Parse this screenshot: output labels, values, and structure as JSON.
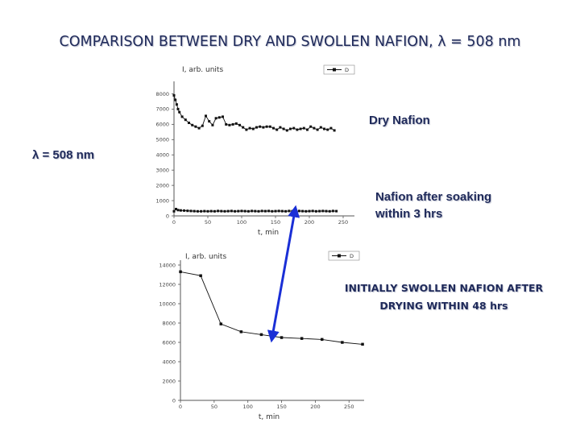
{
  "slide": {
    "title": "COMPARISON BETWEEN DRY AND SWOLLEN NAFION, λ = 508 nm",
    "wavelength_label": "λ = 508 nm",
    "dry_label": "Dry Nafion",
    "soaked_label_line1": "Nafion after soaking",
    "soaked_label_line2": "within 3 hrs",
    "drying_label_line1": "INITIALLY SWOLLEN NAFION AFTER",
    "drying_label_line2": "DRYING WITHIN 48 hrs"
  },
  "colors": {
    "title": "#1f2a5a",
    "arrow": "#1a2fd6",
    "series": "#111111"
  },
  "chart_data": [
    {
      "type": "line",
      "ylabel": "I, arb. units",
      "xlabel": "t, min",
      "legend": "D",
      "legend_position": "top-right",
      "xlim": [
        0,
        250
      ],
      "ylim": [
        0,
        8500
      ],
      "xticks": [
        0,
        50,
        100,
        150,
        200,
        250
      ],
      "yticks": [
        0,
        1000,
        2000,
        3000,
        4000,
        5000,
        6000,
        7000,
        8000
      ],
      "grid": false,
      "series": [
        {
          "x": [
            0,
            2,
            4,
            6,
            8,
            12,
            17,
            22,
            27,
            32,
            37,
            42,
            47,
            52,
            57,
            62,
            67,
            72,
            77,
            82,
            87,
            92,
            97,
            102,
            107,
            112,
            117,
            122,
            127,
            132,
            137,
            142,
            147,
            152,
            157,
            162,
            167,
            172,
            177,
            182,
            187,
            192,
            197,
            202,
            207,
            212,
            217,
            222,
            227,
            232,
            237
          ],
          "y": [
            7900,
            7600,
            7300,
            7000,
            6800,
            6500,
            6300,
            6100,
            5950,
            5850,
            5750,
            5900,
            6550,
            6200,
            5950,
            6400,
            6450,
            6500,
            6000,
            5950,
            6000,
            6050,
            5950,
            5800,
            5650,
            5750,
            5700,
            5800,
            5850,
            5800,
            5850,
            5850,
            5750,
            5650,
            5800,
            5700,
            5600,
            5700,
            5750,
            5650,
            5700,
            5750,
            5650,
            5850,
            5750,
            5650,
            5800,
            5700,
            5650,
            5750,
            5600
          ]
        },
        {
          "x": [
            0,
            3,
            6,
            10,
            15,
            20,
            25,
            30,
            35,
            40,
            45,
            50,
            55,
            60,
            65,
            70,
            75,
            80,
            85,
            90,
            95,
            100,
            105,
            110,
            115,
            120,
            125,
            130,
            135,
            140,
            145,
            150,
            155,
            160,
            165,
            170,
            175,
            180,
            185,
            190,
            195,
            200,
            205,
            210,
            215,
            220,
            225,
            230,
            235,
            240
          ],
          "y": [
            300,
            450,
            380,
            360,
            350,
            330,
            320,
            310,
            300,
            300,
            310,
            300,
            310,
            300,
            320,
            310,
            300,
            310,
            320,
            300,
            310,
            320,
            310,
            300,
            320,
            310,
            300,
            320,
            310,
            320,
            300,
            310,
            320,
            310,
            300,
            320,
            310,
            300,
            320,
            310,
            300,
            310,
            320,
            300,
            310,
            320,
            310,
            300,
            320,
            310
          ]
        }
      ]
    },
    {
      "type": "line",
      "ylabel": "I, arb. units",
      "xlabel": "t, min",
      "legend": "D",
      "legend_position": "top-right",
      "xlim": [
        0,
        270
      ],
      "ylim": [
        0,
        14000
      ],
      "xticks": [
        0,
        50,
        100,
        150,
        200,
        250
      ],
      "yticks": [
        0,
        2000,
        4000,
        6000,
        8000,
        10000,
        12000,
        14000
      ],
      "grid": false,
      "series": [
        {
          "x": [
            0,
            30,
            60,
            90,
            120,
            150,
            180,
            210,
            240,
            270
          ],
          "y": [
            13300,
            12900,
            7900,
            7100,
            6800,
            6500,
            6400,
            6300,
            6000,
            5800
          ]
        }
      ]
    }
  ]
}
